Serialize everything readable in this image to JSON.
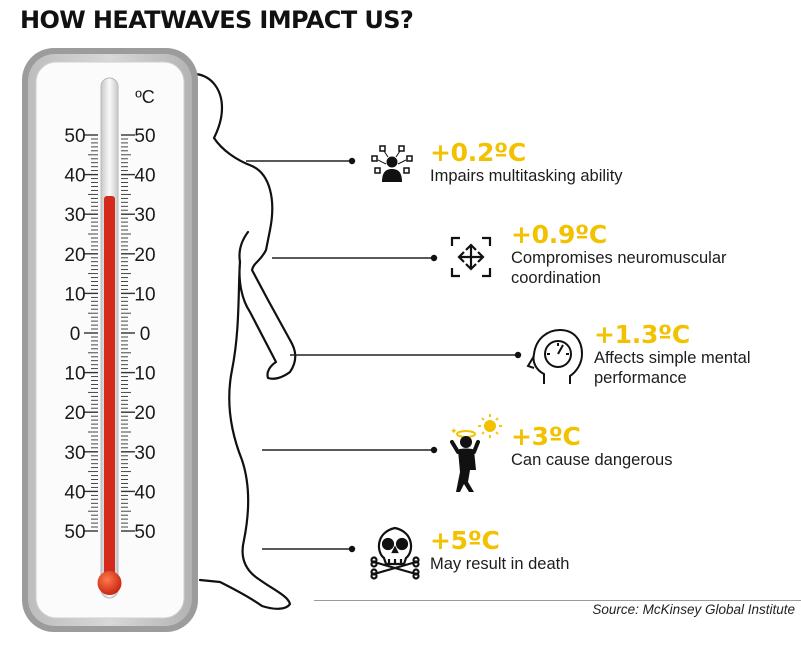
{
  "title": "HOW HEATWAVES IMPACT US?",
  "thermometer": {
    "unit": "ºC",
    "left_scale": [
      "50",
      "40",
      "30",
      "20",
      "10",
      "0",
      "10",
      "20",
      "30",
      "40",
      "50"
    ],
    "right_scale": [
      "50",
      "40",
      "30",
      "20",
      "10",
      "0",
      "10",
      "20",
      "30",
      "40",
      "50"
    ]
  },
  "impacts": [
    {
      "value": "+0.2ºC",
      "description": "Impairs multitasking ability",
      "icon": "multitasking-person-icon"
    },
    {
      "value": "+0.9ºC",
      "description": "Compromises neuromuscular coordination",
      "icon": "move-arrows-icon"
    },
    {
      "value": "+1.3ºC",
      "description": "Affects simple mental performance",
      "icon": "head-gauge-icon"
    },
    {
      "value": "+3ºC",
      "description": "Can cause dangerous",
      "icon": "dizzy-person-sun-icon"
    },
    {
      "value": "+5ºC",
      "description": "May result in death",
      "icon": "skull-crossbones-icon"
    }
  ],
  "source": "Source: McKinsey Global Institute",
  "colors": {
    "accent": "#f2c200",
    "mercury": "#d42a1c",
    "text": "#1a1a1a"
  }
}
